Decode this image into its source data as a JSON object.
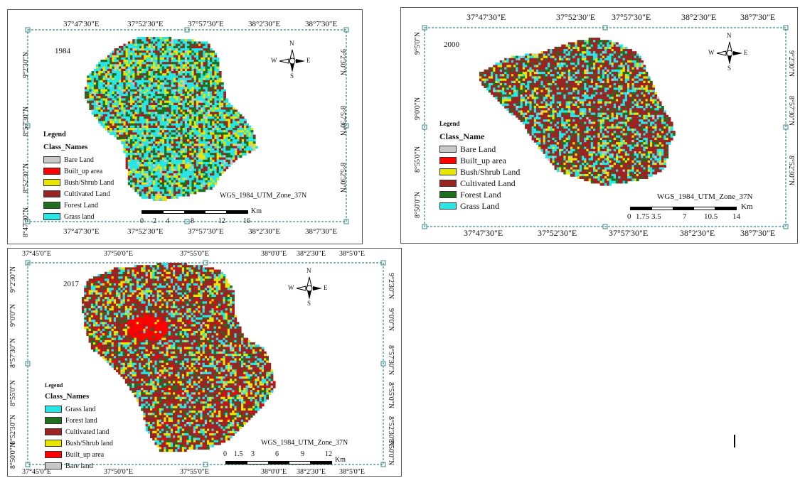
{
  "maps": [
    {
      "id": "map-1984",
      "year": "1984",
      "top_lon_labels": [
        "37°47'30\"E",
        "37°52'30\"E",
        "37°57'30\"E",
        "38°2'30\"E",
        "38°7'30\"E"
      ],
      "bottom_lon_labels": [
        "37°47'30\"E",
        "37°52'30\"E",
        "37°57'30\"E",
        "38°2'30\"E",
        "38°7'30\"E"
      ],
      "left_lat_labels": [
        "9°2'30\"N",
        "8°57'30\"N",
        "8°52'30\"N",
        "8°47'30\"N"
      ],
      "right_lat_labels": [
        "9°2'30\"N",
        "8°57'30\"N",
        "8°52'30\"N"
      ],
      "legend_title": "Legend",
      "legend_subtitle": "Class_Names",
      "legend_items": [
        {
          "label": "Bare Land",
          "color": "#c8c8c8"
        },
        {
          "label": "Built_up area",
          "color": "#ff0000"
        },
        {
          "label": "Bush/Shrub Land",
          "color": "#e6e600"
        },
        {
          "label": "Cultivated Land",
          "color": "#9b2323"
        },
        {
          "label": "Forest Land",
          "color": "#1e6e1e"
        },
        {
          "label": "Grass land",
          "color": "#28e6e6"
        }
      ],
      "projection": "WGS_1984_UTM_Zone_37N",
      "scale_ticks": [
        "0",
        "2",
        "4",
        "8",
        "12",
        "16"
      ],
      "scale_unit": "Km",
      "compass": {
        "n": "N",
        "s": "S",
        "e": "E",
        "w": "W"
      }
    },
    {
      "id": "map-2000",
      "year": "2000",
      "top_lon_labels": [
        "37°47'30\"E",
        "37°52'30\"E",
        "37°57'30\"E",
        "38°2'30\"E",
        "38°7'30\"E"
      ],
      "bottom_lon_labels": [
        "37°47'30\"E",
        "37°52'30\"E",
        "37°57'30\"E",
        "38°2'30\"E",
        "38°7'30\"E"
      ],
      "left_lat_labels": [
        "9°5'0\"N",
        "9°0'0\"N",
        "8°55'0\"N",
        "8°50'0\"N"
      ],
      "right_lat_labels": [
        "9°2'30\"N",
        "8°57'30\"N",
        "8°52'30\"N"
      ],
      "legend_title": "Legend",
      "legend_subtitle": "Class_Name",
      "legend_items": [
        {
          "label": "Bare Land",
          "color": "#c8c8c8"
        },
        {
          "label": "Built_up area",
          "color": "#ff0000"
        },
        {
          "label": "Bush/Shrub Land",
          "color": "#e6e600"
        },
        {
          "label": "Cultivated Land",
          "color": "#9b2323"
        },
        {
          "label": "Forest Land",
          "color": "#1e6e1e"
        },
        {
          "label": "Grass Land",
          "color": "#28e6e6"
        }
      ],
      "projection": "WGS_1984_UTM_Zone_37N",
      "scale_ticks": [
        "0",
        "1.75",
        "3.5",
        "7",
        "10.5",
        "14"
      ],
      "scale_unit": "Km",
      "compass": {
        "n": "N",
        "s": "S",
        "e": "E",
        "w": "W"
      }
    },
    {
      "id": "map-2017",
      "year": "2017",
      "top_lon_labels": [
        "37°45'0\"E",
        "37°50'0\"E",
        "37°55'0\"E",
        "38°0'0\"E",
        "38°2'30\"E",
        "38°5'0\"E"
      ],
      "bottom_lon_labels": [
        "37°45'0\"E",
        "37°50'0\"E",
        "37°55'0\"E",
        "38°0'0\"E",
        "38°2'30\"E",
        "38°5'0\"E"
      ],
      "left_lat_labels": [
        "9°2'30\"N",
        "9°0'0\"N",
        "8°57'30\"N",
        "8°55'0\"N",
        "8°52'30\"N",
        "8°50'0\"N"
      ],
      "right_lat_labels": [
        "9°2'30\"N",
        "9°0'0\"N",
        "8°57'30\"N",
        "8°55'0\"N",
        "8°52'30\"N",
        "8°50'0\"N"
      ],
      "legend_title": "Legend",
      "legend_subtitle": "Class_Names",
      "legend_items": [
        {
          "label": "Grass land",
          "color": "#28e6e6"
        },
        {
          "label": "Forest land",
          "color": "#1e6e1e"
        },
        {
          "label": "Cultivated land",
          "color": "#9b2323"
        },
        {
          "label": "Bush/Shrub land",
          "color": "#e6e600"
        },
        {
          "label": "Built_up area",
          "color": "#ff0000"
        },
        {
          "label": "Bare land",
          "color": "#c8c8c8"
        }
      ],
      "projection": "WGS_1984_UTM_Zone_37N",
      "scale_ticks": [
        "0",
        "1.5",
        "3",
        "6",
        "9",
        "12"
      ],
      "scale_unit": "Km",
      "compass": {
        "n": "N",
        "s": "S",
        "e": "E",
        "w": "W"
      }
    }
  ],
  "land_cover_mix": {
    "1984": {
      "grass": 0.42,
      "forest": 0.18,
      "cultivated": 0.18,
      "shrub": 0.18,
      "built": 0.0,
      "bare": 0.04
    },
    "2000": {
      "grass": 0.22,
      "forest": 0.12,
      "cultivated": 0.52,
      "shrub": 0.12,
      "built": 0.0,
      "bare": 0.02
    },
    "2017": {
      "grass": 0.18,
      "forest": 0.1,
      "cultivated": 0.5,
      "shrub": 0.15,
      "built": 0.05,
      "bare": 0.02
    }
  }
}
